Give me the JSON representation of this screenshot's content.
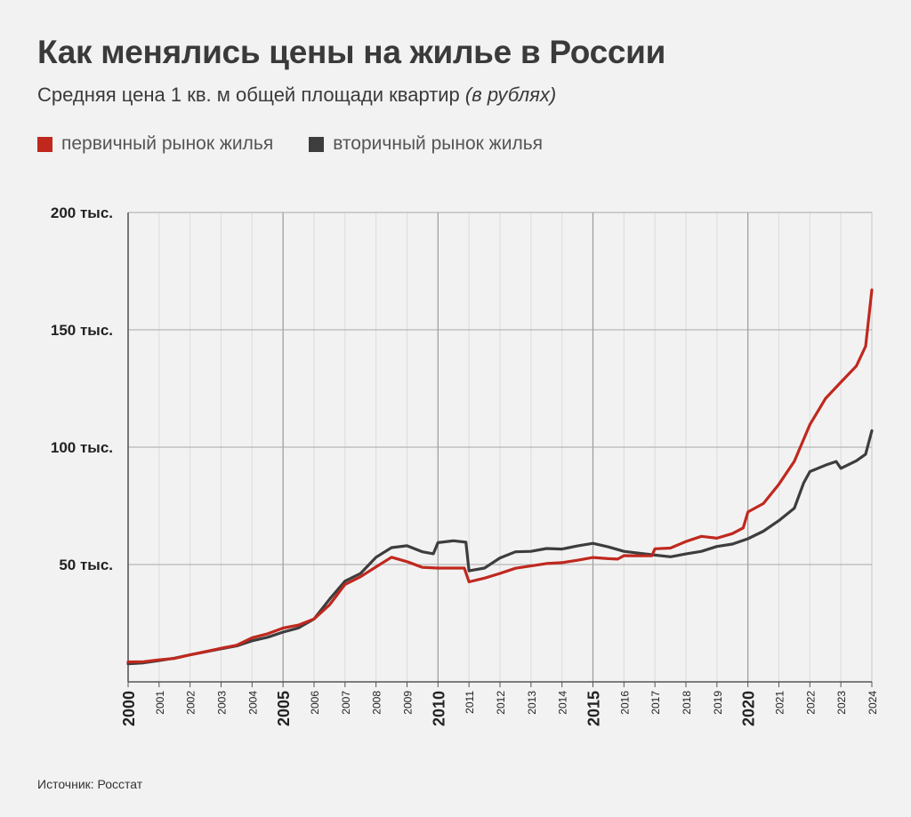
{
  "title": "Как менялись цены на жилье в России",
  "subtitle": "Средняя цена 1 кв. м общей площади квартир",
  "subtitle_unit": "(в рублях)",
  "source": "Источник: Росстат",
  "colors": {
    "primary": "#c0281e",
    "secondary": "#3d3d3d",
    "grid": "#c8c8c8",
    "axis": "#666666"
  },
  "chart_data": {
    "type": "line",
    "title": "Как менялись цены на жилье в России",
    "subtitle": "Средняя цена 1 кв. м общей площади квартир (в рублях)",
    "xlim": [
      2000,
      2024
    ],
    "ylim": [
      0,
      200000
    ],
    "grid": true,
    "legend_position": "top-left",
    "y_ticks": [
      {
        "value": 50000,
        "label": "50 тыс."
      },
      {
        "value": 100000,
        "label": "100 тыс."
      },
      {
        "value": 150000,
        "label": "150 тыс."
      },
      {
        "value": 200000,
        "label": "200 тыс."
      }
    ],
    "x_ticks": [
      {
        "value": 2000,
        "label": "2000",
        "major": true
      },
      {
        "value": 2001,
        "label": "2001",
        "major": false
      },
      {
        "value": 2002,
        "label": "2002",
        "major": false
      },
      {
        "value": 2003,
        "label": "2003",
        "major": false
      },
      {
        "value": 2004,
        "label": "2004",
        "major": false
      },
      {
        "value": 2005,
        "label": "2005",
        "major": true
      },
      {
        "value": 2006,
        "label": "2006",
        "major": false
      },
      {
        "value": 2007,
        "label": "2007",
        "major": false
      },
      {
        "value": 2008,
        "label": "2008",
        "major": false
      },
      {
        "value": 2009,
        "label": "2009",
        "major": false
      },
      {
        "value": 2010,
        "label": "2010",
        "major": true
      },
      {
        "value": 2011,
        "label": "2011",
        "major": false
      },
      {
        "value": 2012,
        "label": "2012",
        "major": false
      },
      {
        "value": 2013,
        "label": "2013",
        "major": false
      },
      {
        "value": 2014,
        "label": "2014",
        "major": false
      },
      {
        "value": 2015,
        "label": "2015",
        "major": true
      },
      {
        "value": 2016,
        "label": "2016",
        "major": false
      },
      {
        "value": 2017,
        "label": "2017",
        "major": false
      },
      {
        "value": 2018,
        "label": "2018",
        "major": false
      },
      {
        "value": 2019,
        "label": "2019",
        "major": false
      },
      {
        "value": 2020,
        "label": "2020",
        "major": true
      },
      {
        "value": 2021,
        "label": "2021",
        "major": false
      },
      {
        "value": 2022,
        "label": "2022",
        "major": false
      },
      {
        "value": 2023,
        "label": "2023",
        "major": false
      },
      {
        "value": 2024,
        "label": "2024",
        "major": false
      }
    ],
    "series": [
      {
        "name": "первичный рынок жилья",
        "color": "#c0281e",
        "points": [
          [
            2000,
            8500
          ],
          [
            2000.5,
            8600
          ],
          [
            2001,
            9400
          ],
          [
            2001.5,
            10000
          ],
          [
            2002,
            11500
          ],
          [
            2002.5,
            12900
          ],
          [
            2003,
            14300
          ],
          [
            2003.5,
            15600
          ],
          [
            2004,
            18800
          ],
          [
            2004.5,
            20500
          ],
          [
            2005,
            22900
          ],
          [
            2005.5,
            24200
          ],
          [
            2006,
            26800
          ],
          [
            2006.5,
            32800
          ],
          [
            2007,
            41500
          ],
          [
            2007.5,
            44800
          ],
          [
            2008,
            49000
          ],
          [
            2008.5,
            53100
          ],
          [
            2009,
            51200
          ],
          [
            2009.5,
            48800
          ],
          [
            2010,
            48500
          ],
          [
            2010.5,
            48500
          ],
          [
            2010.85,
            48500
          ],
          [
            2011,
            42600
          ],
          [
            2011.5,
            44200
          ],
          [
            2012,
            46200
          ],
          [
            2012.5,
            48400
          ],
          [
            2013,
            49400
          ],
          [
            2013.5,
            50400
          ],
          [
            2014,
            50800
          ],
          [
            2014.5,
            51800
          ],
          [
            2015,
            53000
          ],
          [
            2015.5,
            52500
          ],
          [
            2015.8,
            52300
          ],
          [
            2016,
            53800
          ],
          [
            2016.5,
            53700
          ],
          [
            2016.9,
            53700
          ],
          [
            2017,
            56700
          ],
          [
            2017.5,
            57000
          ],
          [
            2018,
            59800
          ],
          [
            2018.5,
            62000
          ],
          [
            2019,
            61200
          ],
          [
            2019.5,
            63200
          ],
          [
            2019.85,
            65600
          ],
          [
            2020,
            72400
          ],
          [
            2020.5,
            76000
          ],
          [
            2021,
            84200
          ],
          [
            2021.5,
            94000
          ],
          [
            2022,
            109600
          ],
          [
            2022.5,
            120700
          ],
          [
            2023,
            127700
          ],
          [
            2023.5,
            134600
          ],
          [
            2023.8,
            143000
          ],
          [
            2024,
            167000
          ]
        ]
      },
      {
        "name": "вторичный рынок жилья",
        "color": "#3d3d3d",
        "points": [
          [
            2000,
            7700
          ],
          [
            2000.5,
            8100
          ],
          [
            2001,
            9100
          ],
          [
            2001.5,
            10100
          ],
          [
            2002,
            11500
          ],
          [
            2002.5,
            12800
          ],
          [
            2003,
            14100
          ],
          [
            2003.5,
            15300
          ],
          [
            2004,
            17500
          ],
          [
            2004.5,
            19000
          ],
          [
            2005,
            21200
          ],
          [
            2005.5,
            23000
          ],
          [
            2006,
            26800
          ],
          [
            2006.5,
            35200
          ],
          [
            2007,
            42900
          ],
          [
            2007.5,
            46200
          ],
          [
            2008,
            53100
          ],
          [
            2008.5,
            57200
          ],
          [
            2009,
            58000
          ],
          [
            2009.5,
            55400
          ],
          [
            2009.85,
            54600
          ],
          [
            2010,
            59300
          ],
          [
            2010.5,
            60100
          ],
          [
            2010.9,
            59500
          ],
          [
            2011,
            47300
          ],
          [
            2011.5,
            48500
          ],
          [
            2012,
            52800
          ],
          [
            2012.5,
            55400
          ],
          [
            2013,
            55600
          ],
          [
            2013.5,
            56800
          ],
          [
            2014,
            56600
          ],
          [
            2014.5,
            57900
          ],
          [
            2015,
            59000
          ],
          [
            2015.5,
            57500
          ],
          [
            2016,
            55600
          ],
          [
            2016.5,
            54800
          ],
          [
            2017,
            54000
          ],
          [
            2017.5,
            53300
          ],
          [
            2018,
            54500
          ],
          [
            2018.5,
            55600
          ],
          [
            2019,
            57700
          ],
          [
            2019.5,
            58700
          ],
          [
            2020,
            61000
          ],
          [
            2020.5,
            64200
          ],
          [
            2021,
            68700
          ],
          [
            2021.5,
            74000
          ],
          [
            2021.8,
            84800
          ],
          [
            2022,
            89600
          ],
          [
            2022.5,
            92300
          ],
          [
            2022.85,
            93900
          ],
          [
            2023,
            91000
          ],
          [
            2023.5,
            94200
          ],
          [
            2023.8,
            97000
          ],
          [
            2024,
            107000
          ]
        ]
      }
    ]
  },
  "legend": [
    {
      "label": "первичный рынок жилья",
      "color": "#c0281e"
    },
    {
      "label": "вторичный рынок жилья",
      "color": "#3d3d3d"
    }
  ]
}
